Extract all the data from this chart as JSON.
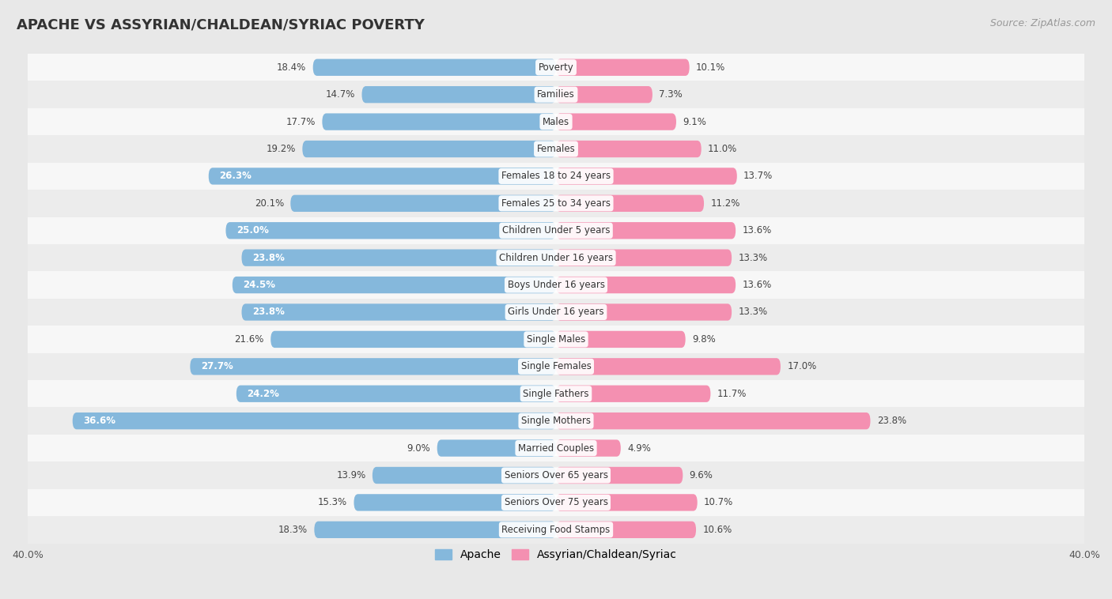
{
  "title": "APACHE VS ASSYRIAN/CHALDEAN/SYRIAC POVERTY",
  "source": "Source: ZipAtlas.com",
  "categories": [
    "Poverty",
    "Families",
    "Males",
    "Females",
    "Females 18 to 24 years",
    "Females 25 to 34 years",
    "Children Under 5 years",
    "Children Under 16 years",
    "Boys Under 16 years",
    "Girls Under 16 years",
    "Single Males",
    "Single Females",
    "Single Fathers",
    "Single Mothers",
    "Married Couples",
    "Seniors Over 65 years",
    "Seniors Over 75 years",
    "Receiving Food Stamps"
  ],
  "apache_values": [
    18.4,
    14.7,
    17.7,
    19.2,
    26.3,
    20.1,
    25.0,
    23.8,
    24.5,
    23.8,
    21.6,
    27.7,
    24.2,
    36.6,
    9.0,
    13.9,
    15.3,
    18.3
  ],
  "assyrian_values": [
    10.1,
    7.3,
    9.1,
    11.0,
    13.7,
    11.2,
    13.6,
    13.3,
    13.6,
    13.3,
    9.8,
    17.0,
    11.7,
    23.8,
    4.9,
    9.6,
    10.7,
    10.6
  ],
  "apache_color": "#85b8dc",
  "assyrian_color": "#f490b1",
  "apache_label": "Apache",
  "assyrian_label": "Assyrian/Chaldean/Syriac",
  "axis_max": 40.0,
  "bg_odd": "#f7f7f7",
  "bg_even": "#ececec",
  "label_inside_threshold": 23.0
}
